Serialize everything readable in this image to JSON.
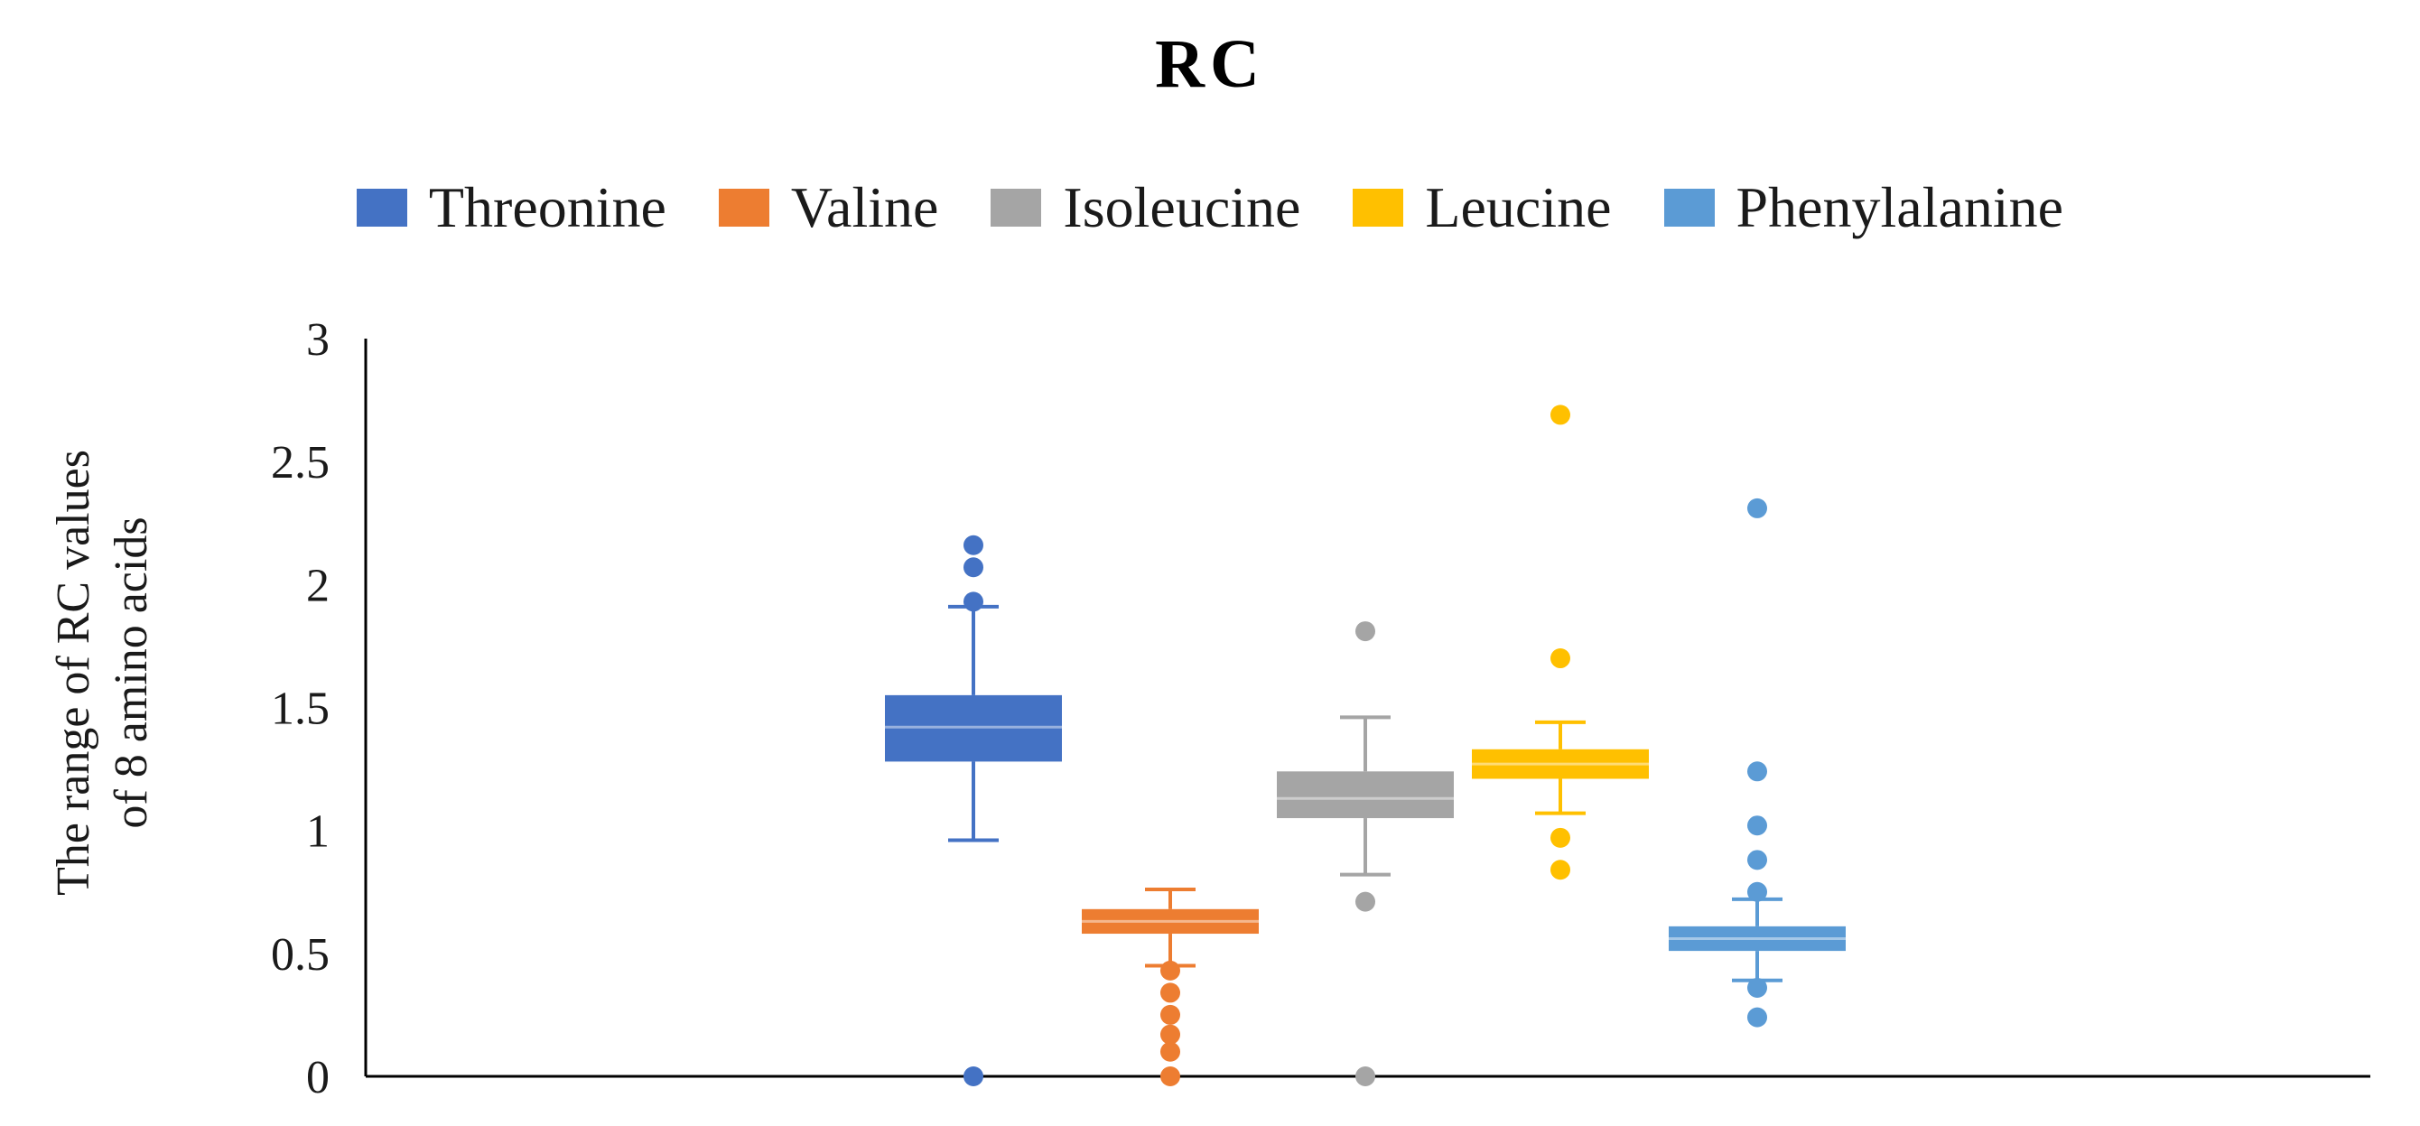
{
  "chart_data": {
    "type": "boxplot",
    "title": "RC",
    "xlabel": "",
    "ylabel_lines": [
      "The range of RC values",
      "of 8 amino acids"
    ],
    "ylim": [
      0,
      3
    ],
    "yticks": [
      {
        "value": 0,
        "label": "0"
      },
      {
        "value": 0.5,
        "label": "0.5"
      },
      {
        "value": 1,
        "label": "1"
      },
      {
        "value": 1.5,
        "label": "1.5"
      },
      {
        "value": 2,
        "label": "2"
      },
      {
        "value": 2.5,
        "label": "2.5"
      },
      {
        "value": 3,
        "label": "3"
      }
    ],
    "grid": false,
    "legend_position": "top",
    "series": [
      {
        "name": "Threonine",
        "color": "#4472C4",
        "whisker_low": 0.96,
        "q1": 1.28,
        "median": 1.42,
        "q3": 1.55,
        "whisker_high": 1.91,
        "outliers": [
          0,
          1.93,
          2.07,
          2.16
        ]
      },
      {
        "name": "Valine",
        "color": "#ED7D31",
        "whisker_low": 0.45,
        "q1": 0.58,
        "median": 0.63,
        "q3": 0.68,
        "whisker_high": 0.76,
        "outliers": [
          0,
          0.1,
          0.17,
          0.25,
          0.34,
          0.43
        ]
      },
      {
        "name": "Isoleucine",
        "color": "#A5A5A5",
        "whisker_low": 0.82,
        "q1": 1.05,
        "median": 1.13,
        "q3": 1.24,
        "whisker_high": 1.46,
        "outliers": [
          0,
          0.71,
          1.81
        ]
      },
      {
        "name": "Leucine",
        "color": "#FFC000",
        "whisker_low": 1.07,
        "q1": 1.21,
        "median": 1.27,
        "q3": 1.33,
        "whisker_high": 1.44,
        "outliers": [
          0.84,
          0.97,
          1.7,
          2.69
        ]
      },
      {
        "name": "Phenylalanine",
        "color": "#5B9BD5",
        "whisker_low": 0.39,
        "q1": 0.51,
        "median": 0.56,
        "q3": 0.61,
        "whisker_high": 0.72,
        "outliers": [
          0.24,
          0.36,
          0.75,
          0.88,
          1.02,
          1.24,
          2.31
        ]
      }
    ]
  }
}
